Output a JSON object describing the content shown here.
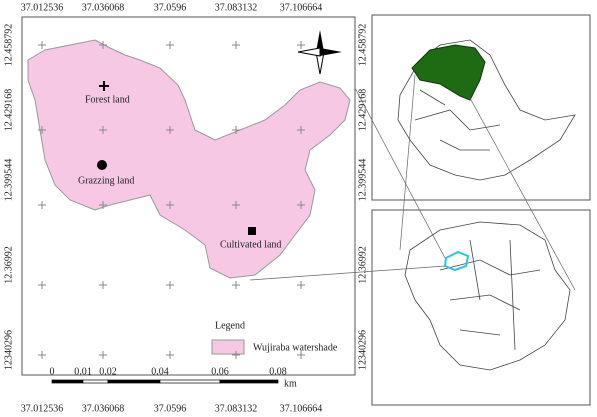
{
  "map": {
    "x_labels": [
      "37.012536",
      "37.036068",
      "37.0596",
      "37.083132",
      "37.106664"
    ],
    "y_labels": [
      "12.458792",
      "12.429168",
      "12.399544",
      "12.36992",
      "12340296"
    ],
    "features": [
      {
        "label": "Forest land",
        "symbol": "cross"
      },
      {
        "label": "Grazzing land",
        "symbol": "circle"
      },
      {
        "label": "Cultivated land",
        "symbol": "square"
      }
    ],
    "legend": {
      "title": "Legend",
      "items": [
        "Wujiraba watershade"
      ]
    },
    "scale_bar": {
      "labels": [
        "0",
        "0.01",
        "0.02",
        "0.04",
        "0.06",
        "0.08"
      ],
      "unit": "km"
    }
  }
}
